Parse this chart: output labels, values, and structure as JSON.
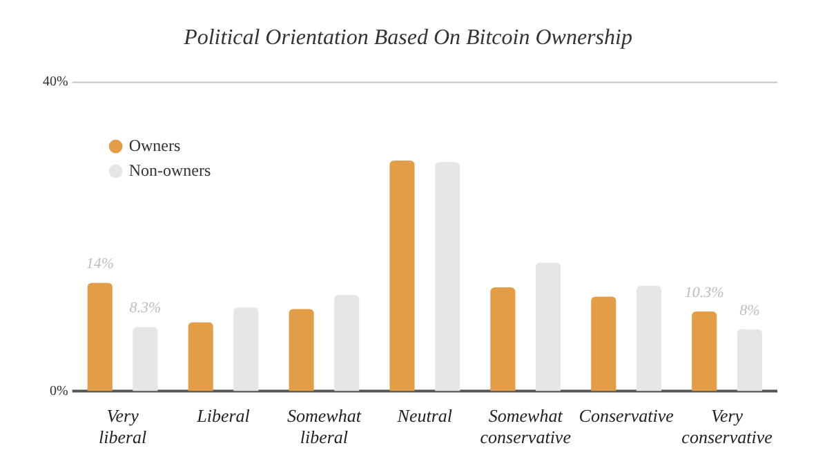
{
  "chart_data": {
    "type": "bar",
    "title": "Political Orientation Based On Bitcoin Ownership",
    "categories": [
      "Very liberal",
      "Liberal",
      "Somewhat liberal",
      "Neutral",
      "Somewhat conservative",
      "Conservative",
      "Very conservative"
    ],
    "series": [
      {
        "name": "Owners",
        "color": "#e39d46",
        "values": [
          14,
          8.9,
          10.6,
          29.8,
          13.4,
          12.2,
          10.3
        ],
        "value_labels": [
          "14%",
          null,
          null,
          null,
          null,
          null,
          "10.3%"
        ]
      },
      {
        "name": "Non-owners",
        "color": "#e6e6e6",
        "values": [
          8.3,
          10.8,
          12.4,
          29.6,
          16.6,
          13.6,
          8
        ],
        "value_labels": [
          "8.3%",
          null,
          null,
          null,
          null,
          null,
          "8%"
        ]
      }
    ],
    "ylim": [
      0,
      40
    ],
    "yticks": [
      {
        "value": 0,
        "label": "0%"
      },
      {
        "value": 40,
        "label": "40%"
      }
    ],
    "legend": "top left",
    "marker": "circle"
  }
}
